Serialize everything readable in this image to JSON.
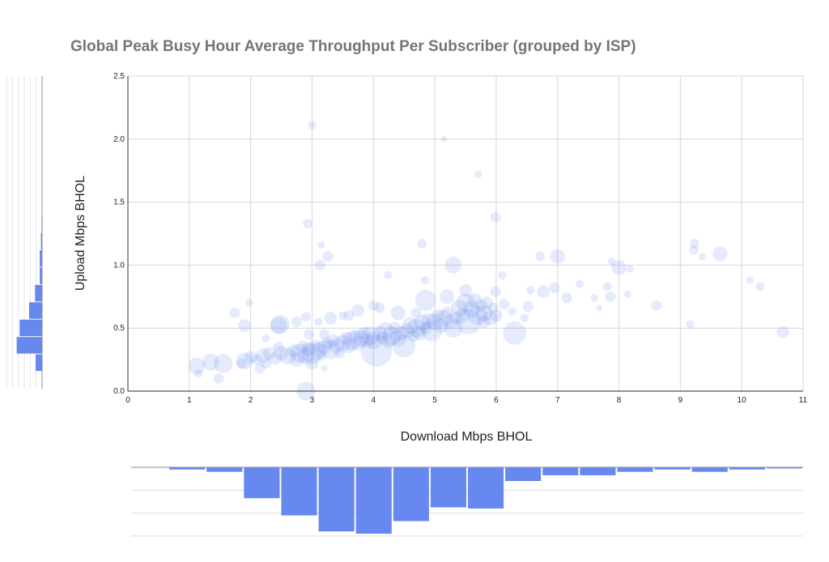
{
  "chart_data": {
    "type": "scatter",
    "subtype": "bubble",
    "title": "Global Peak Busy Hour Average Throughput Per Subscriber (grouped by ISP)",
    "xlabel": "Download Mbps BHOL",
    "ylabel": "Upload Mbps BHOL",
    "xlim": [
      0,
      11
    ],
    "ylim": [
      0,
      2.5
    ],
    "xticks": [
      "0",
      "1",
      "2",
      "3",
      "4",
      "5",
      "6",
      "7",
      "8",
      "9",
      "10",
      "11"
    ],
    "yticks": [
      "0.0",
      "0.5",
      "1.0",
      "1.5",
      "2.0",
      "2.5"
    ],
    "grid": true,
    "legend": "none",
    "colors": {
      "bubble": "#6789ef",
      "histogram": "#6789ef",
      "grid": "#d6d6d6",
      "axis": "#555555",
      "title": "#757575"
    },
    "points": [
      [
        3.0,
        2.11,
        4
      ],
      [
        5.15,
        2.0,
        3
      ],
      [
        5.71,
        1.72,
        3.5
      ],
      [
        5.99,
        1.38,
        5
      ],
      [
        2.93,
        1.33,
        4.5
      ],
      [
        3.15,
        1.16,
        3.5
      ],
      [
        3.26,
        1.07,
        5
      ],
      [
        3.13,
        1.0,
        5
      ],
      [
        4.79,
        1.17,
        4.5
      ],
      [
        5.3,
        1.0,
        8
      ],
      [
        4.24,
        0.92,
        4
      ],
      [
        4.84,
        0.88,
        4
      ],
      [
        6.1,
        0.92,
        4
      ],
      [
        6.72,
        1.07,
        4.5
      ],
      [
        7.0,
        1.07,
        7
      ],
      [
        7.88,
        1.03,
        3.5
      ],
      [
        8.0,
        0.98,
        7
      ],
      [
        8.18,
        0.97,
        3.5
      ],
      [
        8.14,
        0.77,
        3.5
      ],
      [
        9.23,
        1.17,
        4.5
      ],
      [
        9.22,
        1.12,
        4.5
      ],
      [
        9.36,
        1.07,
        3.5
      ],
      [
        9.65,
        1.09,
        7
      ],
      [
        10.13,
        0.88,
        3.5
      ],
      [
        10.3,
        0.83,
        4
      ],
      [
        10.67,
        0.47,
        6
      ],
      [
        9.16,
        0.53,
        4
      ],
      [
        8.61,
        0.68,
        5
      ],
      [
        7.36,
        0.85,
        4
      ],
      [
        7.81,
        0.83,
        4
      ],
      [
        7.86,
        0.75,
        5
      ],
      [
        7.68,
        0.66,
        3
      ],
      [
        7.6,
        0.74,
        3.5
      ],
      [
        6.95,
        0.82,
        5
      ],
      [
        7.15,
        0.74,
        5
      ],
      [
        6.77,
        0.79,
        6
      ],
      [
        6.56,
        0.8,
        4
      ],
      [
        6.52,
        0.67,
        5
      ],
      [
        6.46,
        0.58,
        4
      ],
      [
        6.3,
        0.46,
        11
      ],
      [
        6.26,
        0.63,
        4
      ],
      [
        6.13,
        0.69,
        5
      ],
      [
        5.99,
        0.79,
        5
      ],
      [
        1.98,
        0.7,
        3.5
      ],
      [
        1.74,
        0.62,
        5
      ],
      [
        1.9,
        0.52,
        6
      ],
      [
        1.15,
        0.14,
        4
      ],
      [
        1.48,
        0.1,
        5
      ],
      [
        1.12,
        0.2,
        8
      ],
      [
        1.35,
        0.23,
        8
      ],
      [
        1.55,
        0.22,
        9
      ],
      [
        2.9,
        0.0,
        9
      ],
      [
        2.48,
        0.53,
        9
      ],
      [
        2.9,
        0.59,
        4.5
      ],
      [
        1.9,
        0.24,
        8
      ],
      [
        1.85,
        0.22,
        5
      ],
      [
        2.0,
        0.27,
        6
      ],
      [
        2.1,
        0.25,
        5
      ],
      [
        2.2,
        0.28,
        7
      ],
      [
        2.3,
        0.3,
        6
      ],
      [
        2.25,
        0.22,
        5
      ],
      [
        2.4,
        0.26,
        6
      ],
      [
        2.5,
        0.3,
        7
      ],
      [
        2.45,
        0.35,
        5
      ],
      [
        2.6,
        0.28,
        8
      ],
      [
        2.7,
        0.32,
        6
      ],
      [
        2.75,
        0.25,
        7
      ],
      [
        2.8,
        0.3,
        9
      ],
      [
        2.85,
        0.35,
        6
      ],
      [
        2.9,
        0.28,
        8
      ],
      [
        2.95,
        0.33,
        7
      ],
      [
        3.0,
        0.3,
        10
      ],
      [
        3.05,
        0.36,
        6
      ],
      [
        3.1,
        0.32,
        8
      ],
      [
        3.15,
        0.28,
        5
      ],
      [
        3.2,
        0.35,
        7
      ],
      [
        3.25,
        0.38,
        6
      ],
      [
        3.3,
        0.33,
        9
      ],
      [
        3.35,
        0.4,
        6
      ],
      [
        3.4,
        0.36,
        7
      ],
      [
        3.45,
        0.3,
        5
      ],
      [
        3.5,
        0.38,
        8
      ],
      [
        3.55,
        0.42,
        6
      ],
      [
        3.6,
        0.36,
        7
      ],
      [
        3.65,
        0.4,
        9
      ],
      [
        3.7,
        0.44,
        6
      ],
      [
        3.75,
        0.38,
        7
      ],
      [
        3.8,
        0.42,
        8
      ],
      [
        3.85,
        0.46,
        6
      ],
      [
        3.9,
        0.4,
        7
      ],
      [
        3.95,
        0.44,
        9
      ],
      [
        4.0,
        0.4,
        8
      ],
      [
        4.05,
        0.32,
        15
      ],
      [
        4.1,
        0.46,
        7
      ],
      [
        4.15,
        0.42,
        6
      ],
      [
        4.2,
        0.48,
        8
      ],
      [
        4.25,
        0.4,
        7
      ],
      [
        4.3,
        0.44,
        9
      ],
      [
        4.35,
        0.5,
        6
      ],
      [
        4.4,
        0.42,
        8
      ],
      [
        4.45,
        0.46,
        7
      ],
      [
        4.5,
        0.36,
        11
      ],
      [
        4.55,
        0.48,
        7
      ],
      [
        4.6,
        0.52,
        8
      ],
      [
        4.65,
        0.44,
        6
      ],
      [
        4.7,
        0.5,
        9
      ],
      [
        4.75,
        0.46,
        7
      ],
      [
        4.8,
        0.54,
        8
      ],
      [
        4.85,
        0.5,
        6
      ],
      [
        4.9,
        0.56,
        7
      ],
      [
        4.95,
        0.48,
        10
      ],
      [
        5.0,
        0.55,
        8
      ],
      [
        5.05,
        0.6,
        6
      ],
      [
        5.1,
        0.52,
        7
      ],
      [
        5.15,
        0.58,
        8
      ],
      [
        5.2,
        0.62,
        6
      ],
      [
        5.25,
        0.55,
        7
      ],
      [
        5.3,
        0.5,
        9
      ],
      [
        5.35,
        0.58,
        6
      ],
      [
        5.4,
        0.66,
        8
      ],
      [
        5.45,
        0.6,
        7
      ],
      [
        5.5,
        0.7,
        9
      ],
      [
        5.55,
        0.55,
        12
      ],
      [
        5.6,
        0.65,
        8
      ],
      [
        5.65,
        0.72,
        7
      ],
      [
        5.7,
        0.6,
        9
      ],
      [
        5.75,
        0.68,
        6
      ],
      [
        5.8,
        0.62,
        8
      ],
      [
        5.85,
        0.7,
        6
      ],
      [
        5.9,
        0.58,
        7
      ],
      [
        5.95,
        0.66,
        5
      ],
      [
        6.0,
        0.6,
        6
      ],
      [
        3.2,
        0.45,
        5
      ],
      [
        3.6,
        0.6,
        5
      ],
      [
        3.75,
        0.64,
        6
      ],
      [
        3.5,
        0.6,
        4
      ],
      [
        4.0,
        0.68,
        5
      ],
      [
        4.1,
        0.66,
        5
      ],
      [
        4.4,
        0.62,
        7
      ],
      [
        4.7,
        0.62,
        5
      ],
      [
        4.85,
        0.72,
        10
      ],
      [
        2.25,
        0.42,
        4
      ],
      [
        2.45,
        0.52,
        8
      ],
      [
        2.75,
        0.55,
        5
      ],
      [
        2.95,
        0.45,
        5
      ],
      [
        3.0,
        0.22,
        6
      ],
      [
        2.15,
        0.18,
        5
      ],
      [
        3.2,
        0.18,
        3
      ],
      [
        3.1,
        0.55,
        4
      ],
      [
        3.3,
        0.58,
        6
      ],
      [
        5.5,
        0.8,
        6
      ],
      [
        5.8,
        0.55,
        6
      ],
      [
        5.2,
        0.75,
        7
      ]
    ],
    "point_fields": [
      "download_mbps",
      "upload_mbps",
      "size"
    ],
    "histograms": [
      {
        "of": "Download Mbps BHOL",
        "orientation": "below, bars downward",
        "range": [
          0,
          11
        ],
        "bins": 18,
        "counts": [
          0,
          2,
          4,
          27,
          42,
          56,
          58,
          47,
          35,
          36,
          12,
          7,
          7,
          4,
          2,
          4,
          2,
          1
        ]
      },
      {
        "of": "Upload Mbps BHOL",
        "orientation": "left, bars leftward",
        "range": [
          0,
          2.5
        ],
        "bins": 18,
        "counts": [
          1,
          22,
          86,
          76,
          44,
          24,
          8,
          8,
          4,
          2,
          1,
          1,
          0,
          0,
          1,
          1,
          0,
          0
        ]
      }
    ]
  }
}
